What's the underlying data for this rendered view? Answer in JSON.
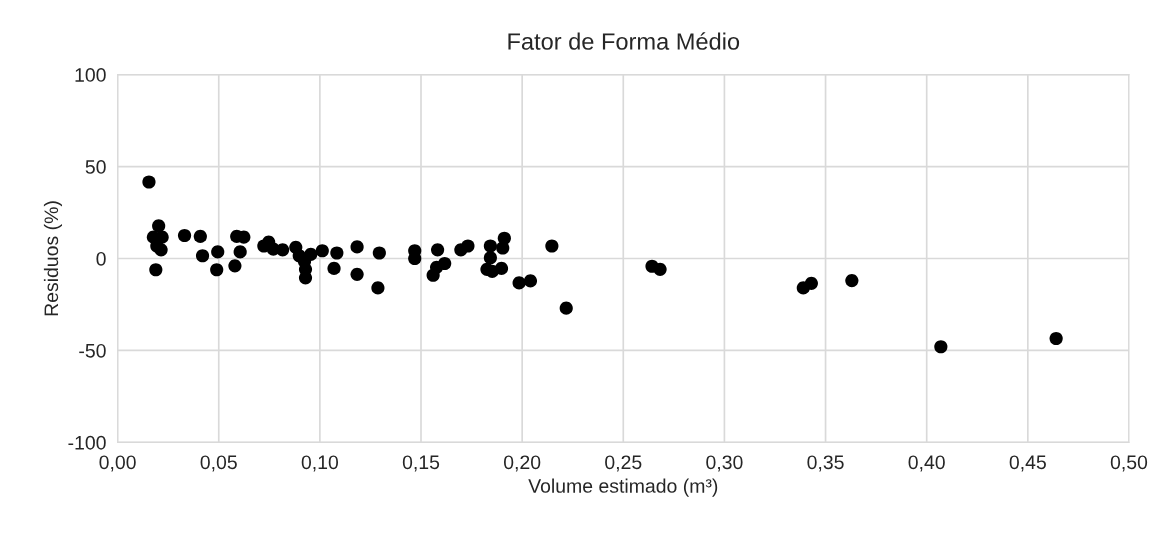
{
  "chart_data": {
    "type": "scatter",
    "title": "Fator de Forma Médio",
    "xlabel": "Volume estimado (m³)",
    "ylabel": "Residuos (%)",
    "x": [
      0.0155,
      0.0203,
      0.0177,
      0.022,
      0.0194,
      0.0215,
      0.0189,
      0.0331,
      0.0409,
      0.042,
      0.0495,
      0.049,
      0.0589,
      0.0624,
      0.0606,
      0.058,
      0.0723,
      0.0747,
      0.077,
      0.0816,
      0.0881,
      0.0898,
      0.0924,
      0.0929,
      0.0929,
      0.0955,
      0.1012,
      0.1084,
      0.107,
      0.1184,
      0.1184,
      0.1294,
      0.1287,
      0.1469,
      0.1469,
      0.1582,
      0.1617,
      0.1577,
      0.156,
      0.1697,
      0.1732,
      0.1843,
      0.1843,
      0.1826,
      0.1852,
      0.1898,
      0.1904,
      0.1912,
      0.1985,
      0.2041,
      0.2147,
      0.2218,
      0.2642,
      0.2682,
      0.339,
      0.343,
      0.363,
      0.407,
      0.464
    ],
    "values": [
      41.6,
      17.7,
      11.6,
      11.6,
      6.8,
      4.7,
      -6.1,
      12.5,
      12.0,
      1.5,
      3.6,
      -6.1,
      12.0,
      11.6,
      3.6,
      -4.0,
      6.8,
      8.9,
      5.1,
      4.7,
      6.1,
      1.5,
      -1.6,
      -5.9,
      -10.5,
      2.2,
      4.2,
      3.0,
      -5.4,
      6.3,
      -8.6,
      3.0,
      -16.0,
      4.2,
      0,
      4.7,
      -2.7,
      -4.8,
      -9.1,
      4.7,
      6.8,
      6.8,
      0.4,
      -5.9,
      -7.0,
      -5.4,
      5.7,
      11.0,
      -13.3,
      -12.2,
      6.8,
      -27.0,
      -4.2,
      -5.9,
      -16.0,
      -13.5,
      -12.0,
      -48.0,
      -43.5
    ],
    "color": "#000000",
    "marker": "circle",
    "grid": true,
    "xlim": [
      0,
      0.5
    ],
    "xticks": [
      {
        "value": 0,
        "label": "0,00"
      },
      {
        "value": 0.05,
        "label": "0,05"
      },
      {
        "value": 0.1,
        "label": "0,10"
      },
      {
        "value": 0.15,
        "label": "0,15"
      },
      {
        "value": 0.2,
        "label": "0,20"
      },
      {
        "value": 0.25,
        "label": "0,25"
      },
      {
        "value": 0.3,
        "label": "0,30"
      },
      {
        "value": 0.35,
        "label": "0,35"
      },
      {
        "value": 0.4,
        "label": "0,40"
      },
      {
        "value": 0.45,
        "label": "0,45"
      },
      {
        "value": 0.5,
        "label": "0,50"
      }
    ],
    "ylim": [
      -100,
      100
    ],
    "yticks": [
      -100,
      -50,
      0,
      50,
      100
    ]
  }
}
